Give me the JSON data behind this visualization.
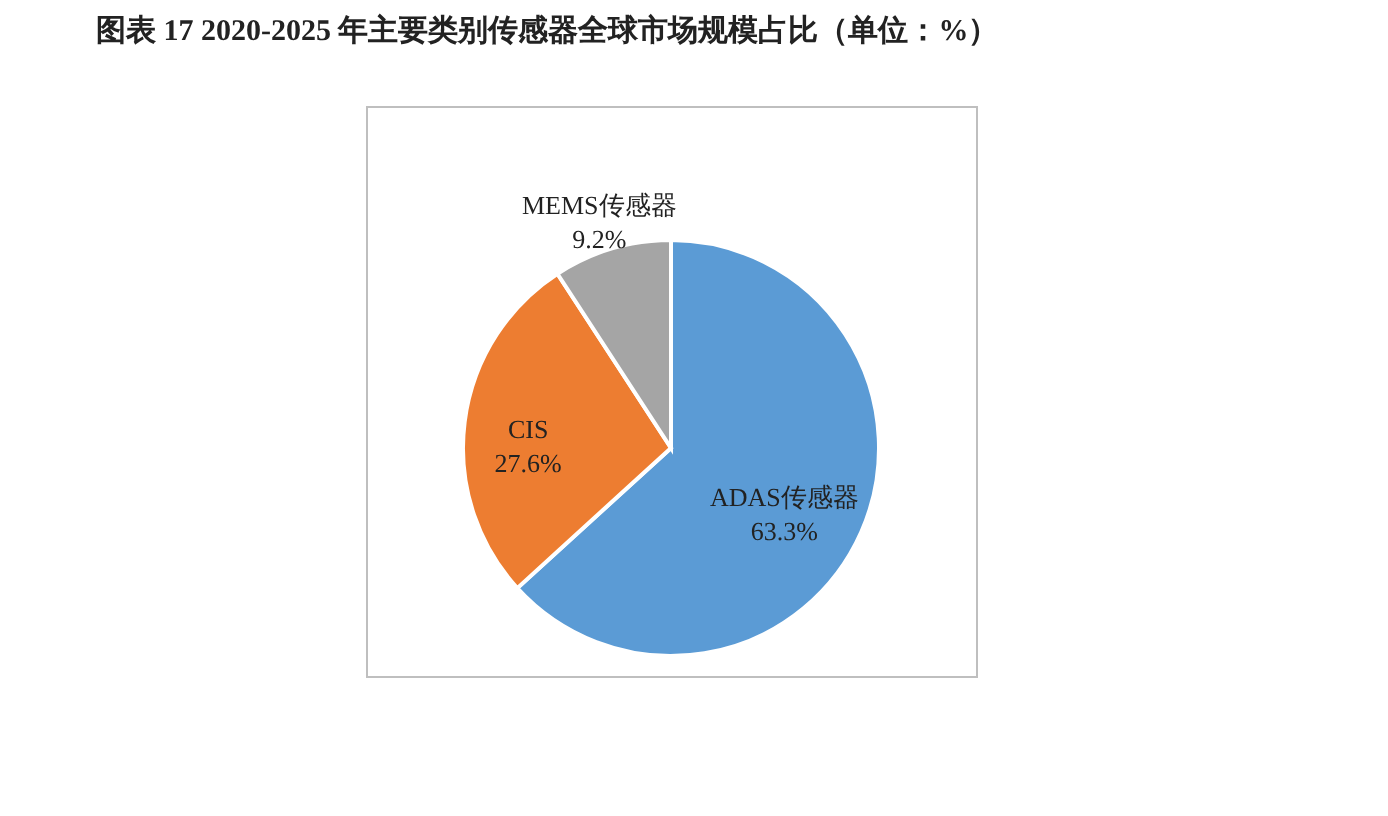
{
  "chart_data": {
    "type": "pie",
    "title": "图表 17    2020-2025 年主要类别传感器全球市场规模占比（单位：%）",
    "categories": [
      "ADAS传感器",
      "CIS",
      "MEMS传感器"
    ],
    "values": [
      63.3,
      27.6,
      9.2
    ],
    "value_labels": [
      "63.3%",
      "27.6%",
      "9.2%"
    ],
    "colors": [
      "#5b9bd5",
      "#ed7d31",
      "#a5a5a5"
    ],
    "legend": false
  }
}
